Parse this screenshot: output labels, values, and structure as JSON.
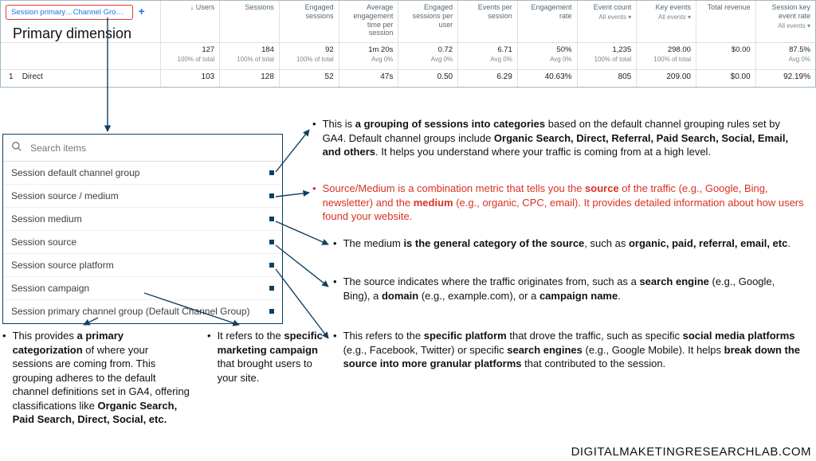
{
  "colors": {
    "highlight_border": "#e53935",
    "link": "#1a73e8",
    "panel_border": "#0f4061",
    "arrow": "#0f4061",
    "red_text": "#d93025",
    "grid": "#e0e0e0",
    "muted": "#5f6368"
  },
  "header": {
    "dimension_pill": "Session primary…Channel Group)",
    "add_symbol": "+",
    "primary_dimension_label": "Primary dimension"
  },
  "columns": [
    {
      "label": "↓ Users",
      "sub": ""
    },
    {
      "label": "Sessions",
      "sub": ""
    },
    {
      "label": "Engaged sessions",
      "sub": ""
    },
    {
      "label": "Average engagement time per session",
      "sub": ""
    },
    {
      "label": "Engaged sessions per user",
      "sub": ""
    },
    {
      "label": "Events per session",
      "sub": ""
    },
    {
      "label": "Engagement rate",
      "sub": ""
    },
    {
      "label": "Event count",
      "sub": "All events ▾"
    },
    {
      "label": "Key events",
      "sub": "All events ▾"
    },
    {
      "label": "Total revenue",
      "sub": ""
    },
    {
      "label": "Session key event rate",
      "sub": "All events ▾"
    }
  ],
  "totals": {
    "values": [
      "127",
      "184",
      "92",
      "1m 20s",
      "0.72",
      "6.71",
      "50%",
      "1,235",
      "298.00",
      "$0.00",
      "87.5%"
    ],
    "subs": [
      "100% of total",
      "100% of total",
      "100% of total",
      "Avg 0%",
      "Avg 0%",
      "Avg 0%",
      "Avg 0%",
      "100% of total",
      "100% of total",
      "",
      "Avg 0%"
    ]
  },
  "row1": {
    "index": "1",
    "label": "Direct",
    "values": [
      "103",
      "128",
      "52",
      "47s",
      "0.50",
      "6.29",
      "40.63%",
      "805",
      "209.00",
      "$0.00",
      "92.19%"
    ]
  },
  "dropdown": {
    "placeholder": "Search items",
    "items": [
      "Session default channel group",
      "Session source / medium",
      "Session medium",
      "Session source",
      "Session source platform",
      "Session campaign",
      "Session primary channel group (Default Channel Group)"
    ]
  },
  "annotations": {
    "a1": {
      "html": "This is <b>a grouping of sessions into categories</b> based on the default channel grouping rules set by GA4. Default channel groups include <b>Organic Search, Direct, Referral, Paid Search, Social, Email, and others</b>. It helps you understand where your traffic is coming from at a high level."
    },
    "a2": {
      "html": "Source/Medium is a combination metric that tells you the <b>source</b> of the traffic (e.g., Google, Bing, newsletter) and the <b>medium</b> (e.g., organic, CPC, email). It provides detailed information about how users found your website."
    },
    "a3": {
      "html": "The medium <b>is the general category of the source</b>, such as <b>organic, paid, referral, email, etc</b>."
    },
    "a4": {
      "html": "The source indicates where the traffic originates from, such as a <b>search engine</b> (e.g., Google, Bing), a <b>domain</b> (e.g., example.com), or a <b>campaign name</b>."
    },
    "a5": {
      "html": "This refers to the <b>specific platform</b> that drove the traffic, such as specific <b>social media platforms</b> (e.g., Facebook, Twitter) or specific <b>search engines</b> (e.g., Google Mobile). It helps <b>break down the source into more granular platforms</b> that contributed to the session."
    },
    "a6": {
      "html": "It refers to the <b>specific marketing campaign</b> that brought users to your site."
    },
    "a7": {
      "html": "This provides <b>a primary categorization</b> of where your sessions are coming from. This grouping adheres to the default channel definitions set in GA4, offering classifications like <b>Organic Search, Paid Search, Direct, Social, etc.</b>"
    }
  },
  "watermark": "DIGITALMAKETINGRESEARCHLAB.COM"
}
